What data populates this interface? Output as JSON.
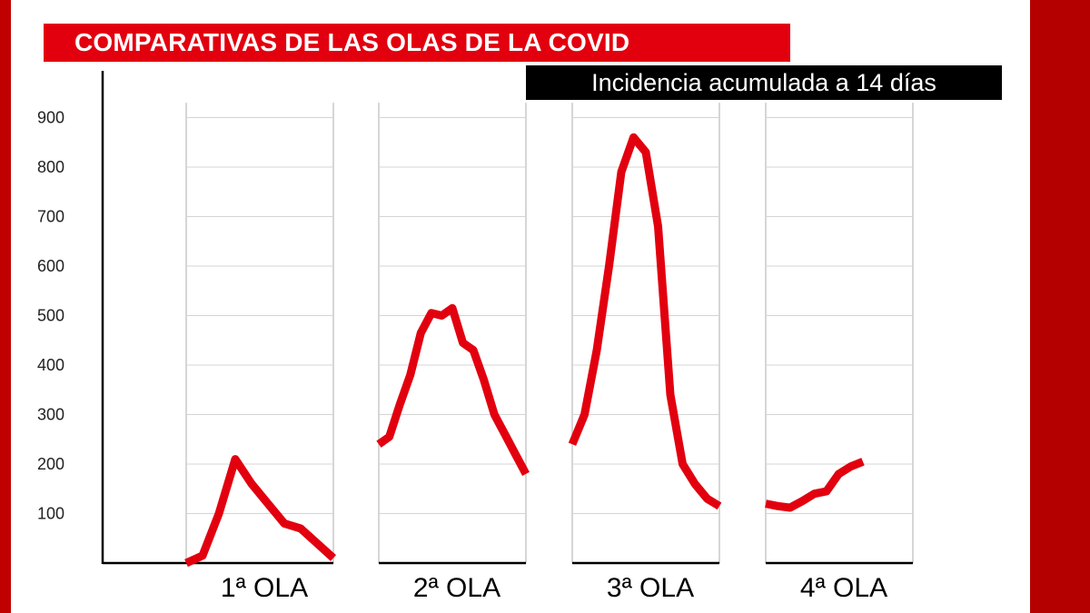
{
  "title": "COMPARATIVAS DE LAS OLAS DE LA COVID",
  "subtitle": "Incidencia acumulada a 14 días",
  "colors": {
    "line": "#e2000f",
    "banner": "#e2000f",
    "frame": "#b50000"
  },
  "chart_data": {
    "type": "line",
    "title": "COMPARATIVAS DE LAS OLAS DE LA COVID",
    "ylabel": "Incidencia acumulada a 14 días",
    "ylim": [
      0,
      1000
    ],
    "yticks": [
      100,
      200,
      300,
      400,
      500,
      600,
      700,
      800,
      900
    ],
    "grid": true,
    "series": [
      {
        "name": "1ª OLA",
        "values": [
          0,
          15,
          100,
          210,
          160,
          120,
          80,
          70,
          40,
          10
        ]
      },
      {
        "name": "2ª OLA",
        "values": [
          240,
          255,
          320,
          380,
          465,
          505,
          500,
          515,
          445,
          430,
          370,
          300,
          260,
          220,
          180
        ]
      },
      {
        "name": "3ª OLA",
        "values": [
          240,
          300,
          430,
          600,
          790,
          860,
          830,
          680,
          340,
          200,
          160,
          130,
          115
        ]
      },
      {
        "name": "4ª OLA",
        "values": [
          120,
          115,
          112,
          125,
          140,
          145,
          180,
          195,
          205
        ]
      }
    ]
  }
}
